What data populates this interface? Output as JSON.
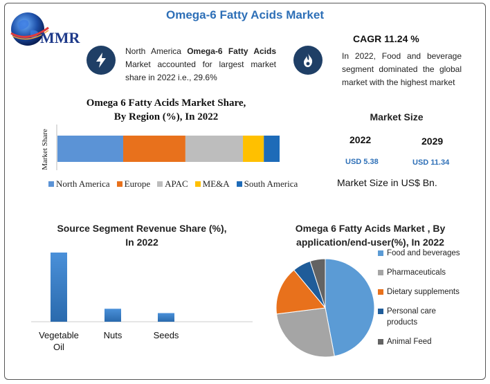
{
  "header": {
    "title": "Omega-6 Fatty Acids Market",
    "logo_text": "MMR"
  },
  "highlights": {
    "left_text_pre": "North America ",
    "left_text_bold": "Omega-6 Fatty Acids",
    "left_text_post": " Market accounted for largest market share in 2022 i.e., 29.6%",
    "cagr": "CAGR 11.24 %",
    "right_text": "In 2022, Food and beverage segment dominated the global market with the highest market"
  },
  "market_size": {
    "title": "Market Size",
    "year_1": "2022",
    "value_1": "USD 5.38",
    "year_2": "2029",
    "value_2": "USD 11.34",
    "note": "Market Size in US$ Bn."
  },
  "colors": {
    "accent": "#2d6fb7",
    "icon_bg": "#1f3f66"
  },
  "chart_data": [
    {
      "type": "bar",
      "orientation": "horizontal-stacked",
      "title_line1": "Omega 6 Fatty Acids Market Share,",
      "title_line2": "By Region (%), In 2022",
      "ylabel": "Market Share",
      "series": [
        {
          "name": "North America",
          "value": 29.6,
          "color": "#5b93d6"
        },
        {
          "name": "Europe",
          "value": 28.0,
          "color": "#e8711c"
        },
        {
          "name": "APAC",
          "value": 25.9,
          "color": "#bdbdbd"
        },
        {
          "name": "ME&A",
          "value": 9.4,
          "color": "#ffc000"
        },
        {
          "name": "South America",
          "value": 7.1,
          "color": "#1e6bb8"
        }
      ],
      "legend_position": "bottom"
    },
    {
      "type": "bar",
      "title_line1": "Source Segment Revenue Share (%),",
      "title_line2": "In 2022",
      "categories": [
        "Vegetable\nOil",
        "Nuts",
        "Seeds"
      ],
      "category_labels": [
        [
          "Vegetable",
          "Oil"
        ],
        [
          "Nuts"
        ],
        [
          "Seeds"
        ]
      ],
      "values": [
        80,
        15,
        10
      ],
      "ylim": [
        0,
        100
      ],
      "color": "#3b7fc4"
    },
    {
      "type": "pie",
      "title_line1": "Omega 6 Fatty Acids Market , By",
      "title_line2": "application/end-user(%), In 2022",
      "slices": [
        {
          "label": "Food and beverages",
          "value": 47,
          "color": "#5b9bd5"
        },
        {
          "label": "Pharmaceuticals",
          "value": 26,
          "color": "#a5a5a5"
        },
        {
          "label": "Dietary supplements",
          "value": 16,
          "color": "#e8711c"
        },
        {
          "label": "Personal care products",
          "value": 6,
          "color": "#1f5c99"
        },
        {
          "label": "Animal Feed",
          "value": 5,
          "color": "#636363"
        }
      ],
      "legend_labels": [
        [
          "Food and beverages"
        ],
        [
          "Pharmaceuticals"
        ],
        [
          "Dietary supplements"
        ],
        [
          "Personal care",
          "products"
        ],
        [
          "Animal Feed"
        ]
      ],
      "legend_position": "right"
    }
  ]
}
